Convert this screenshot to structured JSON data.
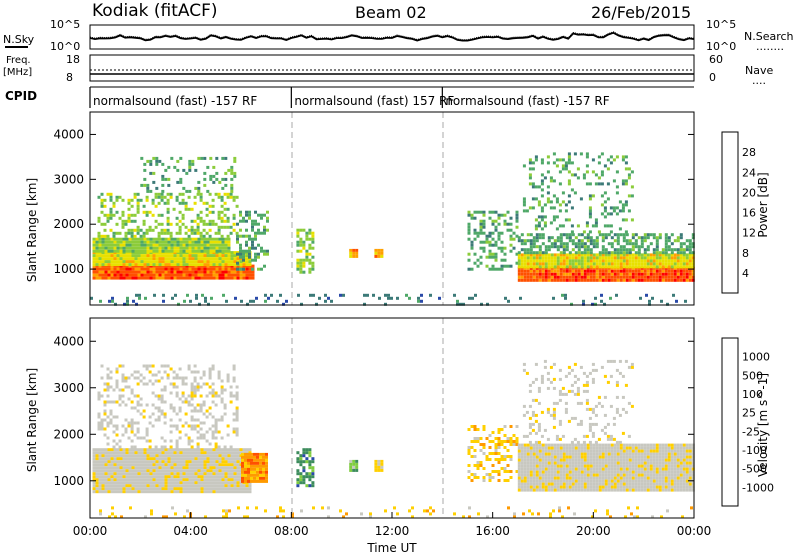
{
  "header": {
    "station": "Kodiak (fitACF)",
    "beam": "Beam 02",
    "date": "26/Feb/2015"
  },
  "noise_panel": {
    "left_label": "N.Sky",
    "right_label": "N.Search",
    "left_ticks": [
      "10^5",
      "10^0"
    ],
    "right_ticks": [
      "10^5",
      "10^0"
    ],
    "legend_mark": "........"
  },
  "freq_panel": {
    "left_label_1": "Freq.",
    "left_label_2": "[MHz]",
    "right_label": "Nave",
    "left_ticks": [
      "18",
      "8"
    ],
    "right_ticks": [
      "60",
      "0"
    ],
    "legend_mark": "...."
  },
  "cpid": {
    "label": "CPID",
    "segments": [
      {
        "text": "normalsound (fast) -157 RF",
        "start": 0,
        "end": 8
      },
      {
        "text": "normalsound (fast) 157 RF",
        "start": 8,
        "end": 14
      },
      {
        "text": "normalsound (fast) -157 RF",
        "start": 14,
        "end": 24
      }
    ]
  },
  "chart_data": [
    {
      "type": "heatmap",
      "name": "power",
      "ylabel": "Slant Range [km]",
      "ylim": [
        200,
        4500
      ],
      "yticks": [
        1000,
        2000,
        3000,
        4000
      ],
      "xlim": [
        0,
        24
      ],
      "colorbar_label": "Power [dB]",
      "colorbar_ticks": [
        "28",
        "24",
        "20",
        "16",
        "12",
        "8",
        "4"
      ],
      "colors": [
        "#0000ff",
        "#2a4aa8",
        "#3c7a78",
        "#4fa868",
        "#8ccc3a",
        "#e8e000",
        "#ffa000",
        "#ff5000",
        "#ff0000"
      ],
      "blobs": [
        {
          "x0": 0.1,
          "x1": 6.5,
          "r0": 800,
          "r1": 1100,
          "c": 7
        },
        {
          "x0": 0.1,
          "x1": 6.3,
          "r0": 1100,
          "r1": 1400,
          "c": 5
        },
        {
          "x0": 0.1,
          "x1": 5.5,
          "r0": 1400,
          "r1": 1700,
          "c": 4
        },
        {
          "x0": 0.3,
          "x1": 5.8,
          "r0": 1700,
          "r1": 2700,
          "c": 4,
          "sparse": 0.35
        },
        {
          "x0": 2.0,
          "x1": 5.8,
          "r0": 2700,
          "r1": 3500,
          "c": 3,
          "sparse": 0.25
        },
        {
          "x0": 5.8,
          "x1": 7.1,
          "r0": 1000,
          "r1": 2300,
          "c": 3,
          "sparse": 0.4
        },
        {
          "x0": 8.2,
          "x1": 8.8,
          "r0": 900,
          "r1": 1900,
          "c": 4,
          "sparse": 0.55
        },
        {
          "x0": 10.3,
          "x1": 10.6,
          "r0": 1250,
          "r1": 1450,
          "c": 6
        },
        {
          "x0": 11.3,
          "x1": 11.6,
          "r0": 1250,
          "r1": 1450,
          "c": 6
        },
        {
          "x0": 15.0,
          "x1": 17.0,
          "r0": 1000,
          "r1": 2300,
          "c": 3,
          "sparse": 0.35
        },
        {
          "x0": 17.0,
          "x1": 24.0,
          "r0": 750,
          "r1": 1050,
          "c": 7
        },
        {
          "x0": 17.0,
          "x1": 24.0,
          "r0": 1050,
          "r1": 1350,
          "c": 5
        },
        {
          "x0": 17.0,
          "x1": 24.0,
          "r0": 1350,
          "r1": 1800,
          "c": 3,
          "sparse": 0.6
        },
        {
          "x0": 17.2,
          "x1": 21.5,
          "r0": 1800,
          "r1": 3600,
          "c": 3,
          "sparse": 0.2
        },
        {
          "x0": 0.0,
          "x1": 24.0,
          "r0": 200,
          "r1": 450,
          "c": 2,
          "sparse": 0.15
        }
      ]
    },
    {
      "type": "heatmap",
      "name": "velocity",
      "ylabel": "Slant Range [km]",
      "xlabel": "Time UT",
      "ylim": [
        200,
        4500
      ],
      "yticks": [
        1000,
        2000,
        3000,
        4000
      ],
      "xlim": [
        0,
        24
      ],
      "xticks": [
        "00:00",
        "04:00",
        "08:00",
        "12:00",
        "16:00",
        "20:00",
        "00:00"
      ],
      "colorbar_label": "Velocity [m s^-1]",
      "colorbar_ticks": [
        "1000",
        "500",
        "100",
        "25",
        "-25",
        "-100",
        "-500",
        "-1000"
      ],
      "colors": [
        "#ff0000",
        "#ff5000",
        "#ff9a00",
        "#ffd000",
        "#c8c8c0",
        "#c8c8c0",
        "#80cc40",
        "#3c8c5c",
        "#2a4aa8",
        "#0000ff"
      ],
      "blobs": [
        {
          "x0": 0.1,
          "x1": 6.3,
          "r0": 750,
          "r1": 1700,
          "c": 4
        },
        {
          "x0": 0.3,
          "x1": 5.8,
          "r0": 1700,
          "r1": 3500,
          "c": 4,
          "sparse": 0.3
        },
        {
          "x0": 6.0,
          "x1": 7.0,
          "r0": 1000,
          "r1": 1600,
          "c": 2
        },
        {
          "x0": 8.2,
          "x1": 8.9,
          "r0": 900,
          "r1": 1700,
          "c": 7,
          "sparse": 0.6
        },
        {
          "x0": 10.3,
          "x1": 10.6,
          "r0": 1250,
          "r1": 1450,
          "c": 6
        },
        {
          "x0": 11.3,
          "x1": 11.6,
          "r0": 1250,
          "r1": 1450,
          "c": 3
        },
        {
          "x0": 15.0,
          "x1": 17.0,
          "r0": 1000,
          "r1": 2200,
          "c": 3,
          "sparse": 0.35
        },
        {
          "x0": 17.0,
          "x1": 24.0,
          "r0": 800,
          "r1": 1800,
          "c": 4
        },
        {
          "x0": 17.2,
          "x1": 21.5,
          "r0": 1800,
          "r1": 3600,
          "c": 4,
          "sparse": 0.2
        },
        {
          "x0": 0.0,
          "x1": 24.0,
          "r0": 200,
          "r1": 450,
          "c": 3,
          "sparse": 0.12
        }
      ]
    }
  ]
}
